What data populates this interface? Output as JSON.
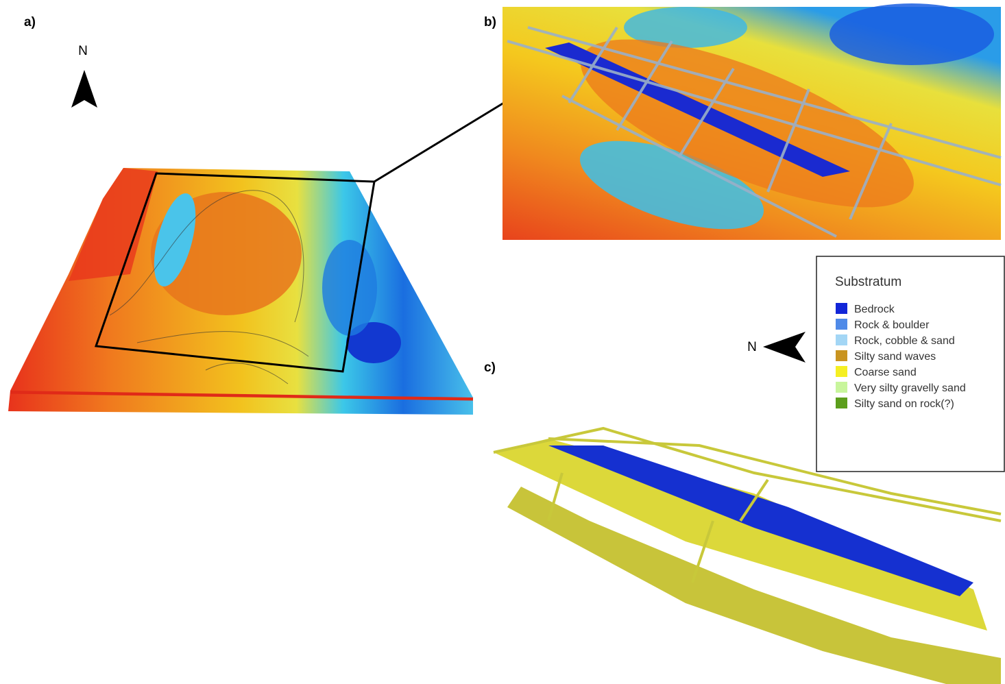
{
  "panels": [
    {
      "label": "a)"
    },
    {
      "label": "b)"
    },
    {
      "label": "c)"
    }
  ],
  "north_arrows": [
    {
      "label": "N"
    },
    {
      "label": "N"
    }
  ],
  "legend": {
    "title": "Substratum",
    "items": [
      {
        "label": "Bedrock",
        "color": "#1226d8"
      },
      {
        "label": "Rock & boulder",
        "color": "#4f8ae8"
      },
      {
        "label": "Rock, cobble & sand",
        "color": "#a3d6f5"
      },
      {
        "label": "Silty sand waves",
        "color": "#c99420"
      },
      {
        "label": "Coarse sand",
        "color": "#f5ef22"
      },
      {
        "label": "Very silty gravelly sand",
        "color": "#c8f59c"
      },
      {
        "label": "Silty sand on rock(?)",
        "color": "#5c9e1c"
      }
    ]
  }
}
